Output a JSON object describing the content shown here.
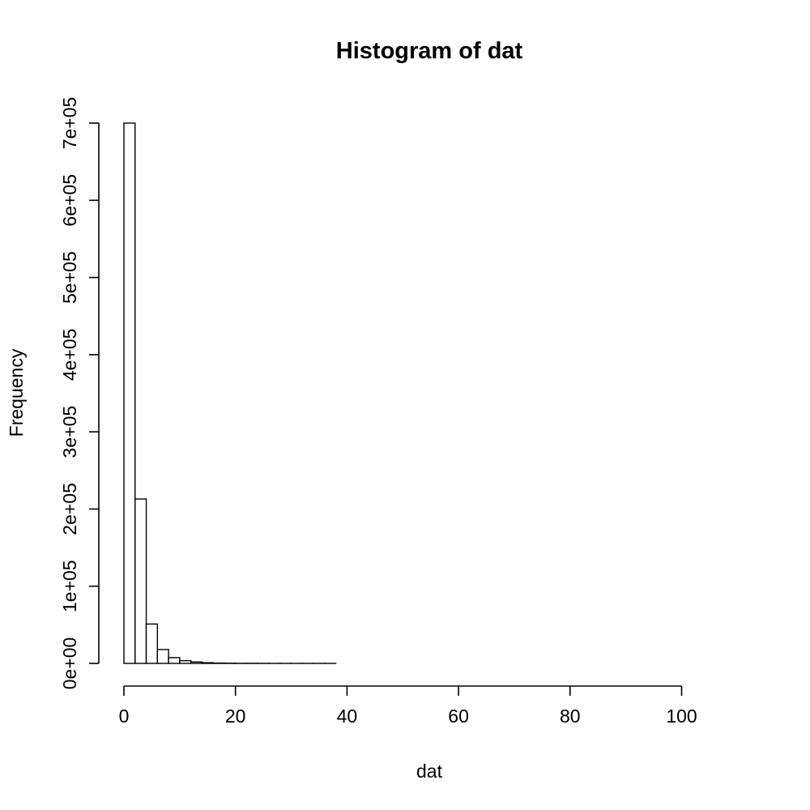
{
  "chart_data": {
    "type": "bar",
    "title": "Histogram of dat",
    "xlabel": "dat",
    "ylabel": "Frequency",
    "bin_width": 2,
    "bin_start": 0,
    "counts": [
      700000,
      213000,
      51000,
      18000,
      7500,
      3500,
      1800,
      900,
      450,
      250,
      150,
      100,
      60,
      40,
      25,
      15,
      10,
      8,
      6,
      5,
      4,
      3,
      3,
      2,
      2,
      1,
      1,
      1,
      1,
      1,
      1,
      1,
      1,
      1,
      1,
      1,
      1,
      1,
      1,
      1,
      1,
      1,
      1,
      1,
      1,
      1,
      1,
      1,
      1,
      1,
      1,
      1,
      1,
      1,
      1
    ],
    "xlim": [
      0,
      110
    ],
    "ylim": [
      0,
      700000
    ],
    "x_ticks": [
      0,
      20,
      40,
      60,
      80,
      100
    ],
    "x_tick_labels": [
      "0",
      "20",
      "40",
      "60",
      "80",
      "100"
    ],
    "y_ticks": [
      0,
      100000,
      200000,
      300000,
      400000,
      500000,
      600000,
      700000
    ],
    "y_tick_labels": [
      "0e+00",
      "1e+05",
      "2e+05",
      "3e+05",
      "4e+05",
      "5e+05",
      "6e+05",
      "7e+05"
    ]
  }
}
